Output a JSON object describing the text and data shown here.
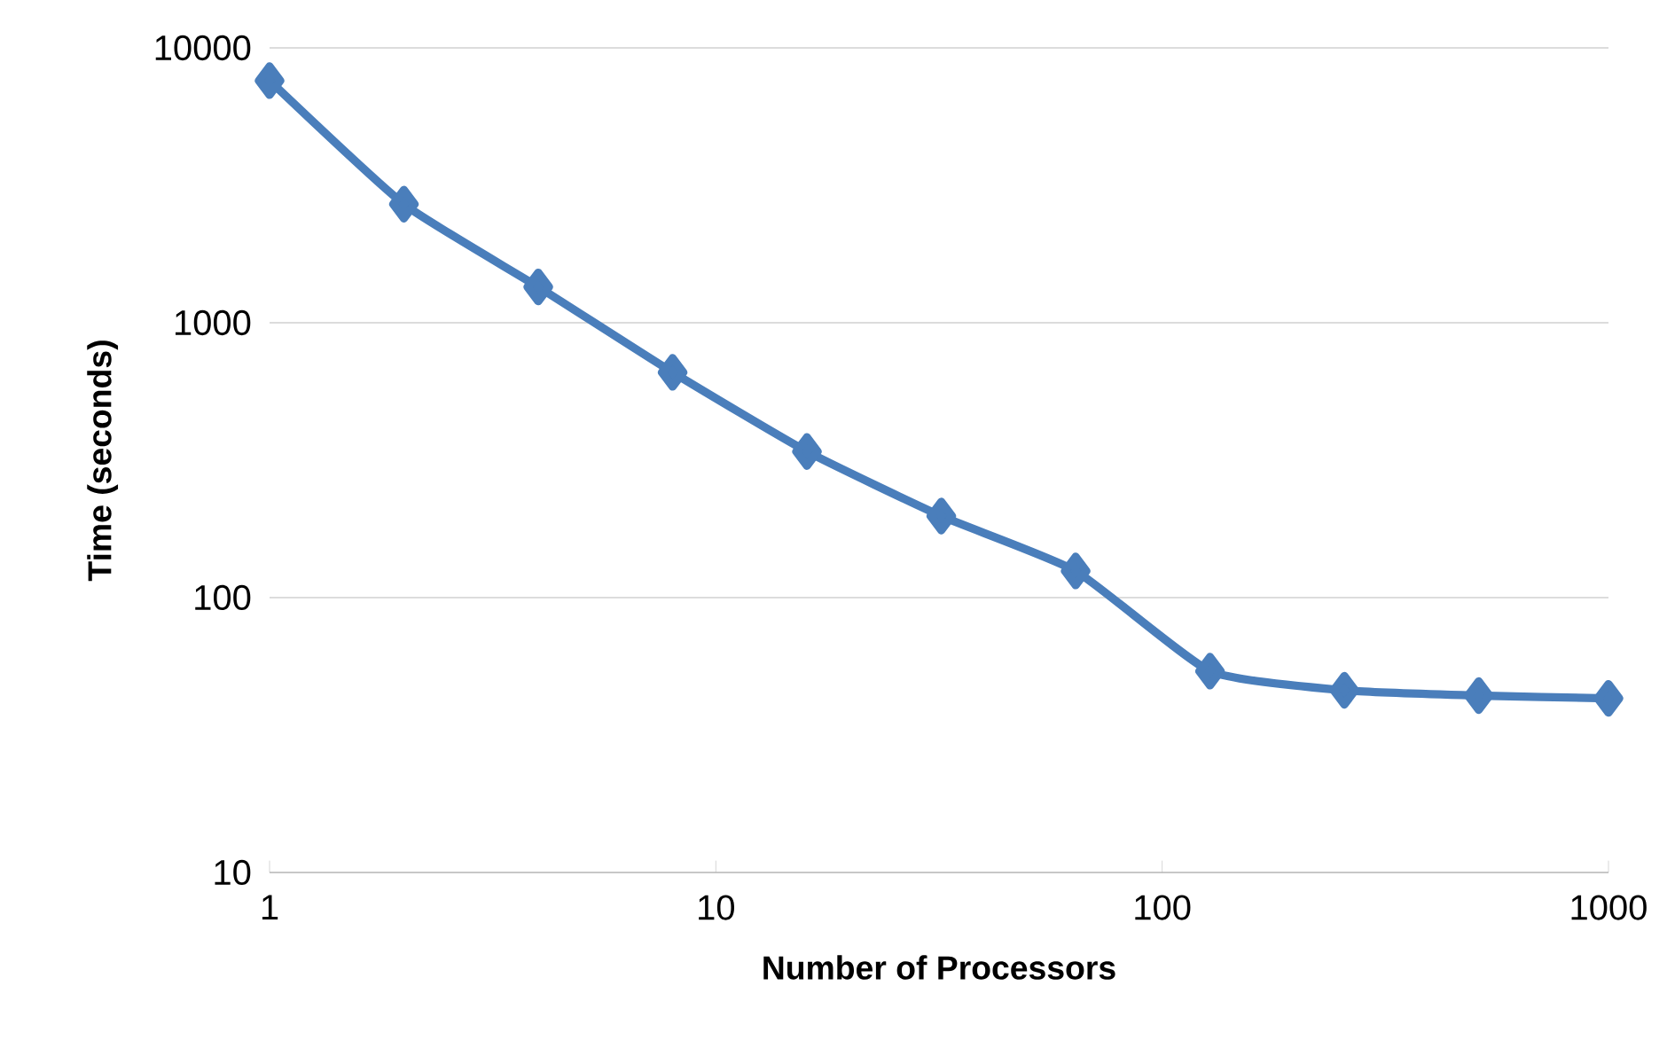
{
  "chart_data": {
    "type": "line",
    "xlabel": "Number of Processors",
    "ylabel": "Time (seconds)",
    "x": [
      1,
      2,
      4,
      8,
      16,
      32,
      64,
      128,
      256,
      512,
      1000
    ],
    "series": [
      {
        "color": "#4a7ebb",
        "values": [
          7600,
          2700,
          1350,
          660,
          340,
          198,
          125,
          54,
          46,
          44,
          43
        ]
      }
    ],
    "log": "xy",
    "xlim": [
      1,
      1000
    ],
    "ylim": [
      10,
      10000
    ],
    "xticks": [
      1,
      10,
      100,
      1000
    ],
    "yticks": [
      10,
      100,
      1000,
      10000
    ],
    "grid": "y",
    "marker": "diamond",
    "line_style": "solid"
  }
}
